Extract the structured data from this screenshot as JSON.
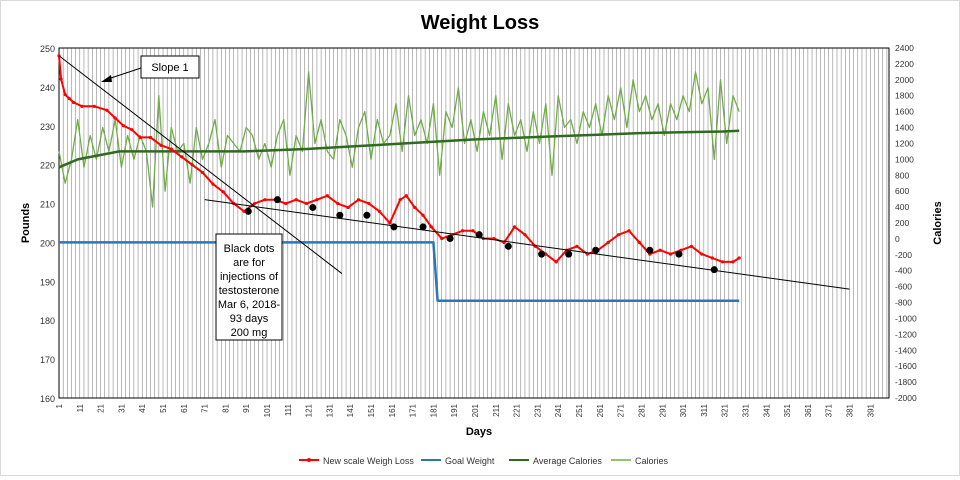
{
  "chart_data": {
    "type": "line",
    "title": "Weight Loss",
    "xlabel": "Days",
    "ylabel": "Pounds",
    "y2label": "Calories",
    "xlim": [
      1,
      400
    ],
    "ylim": [
      160,
      250
    ],
    "y2lim": [
      -2000,
      2400
    ],
    "x_ticks": [
      "1",
      "11",
      "21",
      "31",
      "41",
      "51",
      "61",
      "71",
      "81",
      "91",
      "101",
      "111",
      "121",
      "131",
      "141",
      "151",
      "161",
      "171",
      "181",
      "191",
      "201",
      "211",
      "221",
      "231",
      "241",
      "251",
      "261",
      "271",
      "281",
      "291",
      "301",
      "311",
      "321",
      "331",
      "341",
      "351",
      "361",
      "371",
      "381",
      "391"
    ],
    "y_ticks": [
      "160",
      "170",
      "180",
      "190",
      "200",
      "210",
      "220",
      "230",
      "240",
      "250"
    ],
    "y2_ticks": [
      "-2000",
      "-1800",
      "-1600",
      "-1400",
      "-1200",
      "-1000",
      "-800",
      "-600",
      "-400",
      "-200",
      "0",
      "200",
      "400",
      "600",
      "800",
      "1000",
      "1200",
      "1400",
      "1600",
      "1800",
      "2000",
      "2200",
      "2400"
    ],
    "grid": "vertical",
    "legend_position": "bottom",
    "colors": {
      "weight": "#ff0000",
      "goal": "#2e75b6",
      "avg_calories": "#2e6b1f",
      "calories": "#70ad47",
      "dots": "#000000",
      "trend": "#000000"
    },
    "series": [
      {
        "name": "New scale Weigh Loss",
        "axis": "left",
        "x": [
          1,
          2,
          4,
          6,
          8,
          12,
          18,
          24,
          28,
          32,
          36,
          40,
          45,
          50,
          55,
          60,
          65,
          70,
          75,
          80,
          85,
          90,
          95,
          100,
          105,
          110,
          115,
          120,
          125,
          130,
          135,
          140,
          145,
          150,
          155,
          160,
          165,
          168,
          172,
          176,
          180,
          185,
          190,
          195,
          200,
          205,
          210,
          215,
          220,
          225,
          230,
          235,
          240,
          245,
          250,
          255,
          260,
          265,
          270,
          275,
          280,
          285,
          290,
          295,
          300,
          305,
          310,
          315,
          320,
          325,
          328
        ],
        "values": [
          248,
          242,
          238,
          237,
          236,
          235,
          235,
          234,
          232,
          230,
          229,
          227,
          227,
          225,
          224,
          222,
          220,
          218,
          215,
          213,
          210,
          208,
          210,
          211,
          211,
          210,
          211,
          210,
          211,
          212,
          210,
          209,
          211,
          210,
          208,
          205,
          211,
          212,
          209,
          207,
          204,
          201,
          202,
          203,
          203,
          201,
          201,
          200,
          204,
          202,
          199,
          197,
          195,
          198,
          199,
          197,
          198,
          200,
          202,
          203,
          200,
          197,
          198,
          197,
          198,
          199,
          197,
          196,
          195,
          195,
          196
        ]
      },
      {
        "name": "Goal Weight",
        "axis": "left",
        "x": [
          1,
          181,
          183,
          328
        ],
        "values": [
          200,
          200,
          185,
          185
        ]
      },
      {
        "name": "Average Calories",
        "axis": "right",
        "x": [
          1,
          10,
          20,
          30,
          40,
          50,
          60,
          70,
          80,
          90,
          100,
          120,
          140,
          160,
          180,
          200,
          220,
          240,
          260,
          280,
          300,
          320,
          328
        ],
        "values": [
          900,
          1000,
          1050,
          1100,
          1100,
          1100,
          1100,
          1100,
          1100,
          1100,
          1110,
          1130,
          1160,
          1190,
          1220,
          1250,
          1270,
          1290,
          1310,
          1330,
          1340,
          1350,
          1360
        ]
      },
      {
        "name": "Calories",
        "axis": "right",
        "x": [
          1,
          4,
          7,
          10,
          13,
          16,
          19,
          22,
          25,
          28,
          31,
          34,
          37,
          40,
          43,
          46,
          49,
          52,
          55,
          58,
          61,
          64,
          67,
          70,
          73,
          76,
          79,
          82,
          85,
          88,
          91,
          94,
          97,
          100,
          103,
          106,
          109,
          112,
          115,
          118,
          121,
          124,
          127,
          130,
          133,
          136,
          139,
          142,
          145,
          148,
          151,
          154,
          157,
          160,
          163,
          166,
          169,
          172,
          175,
          178,
          181,
          184,
          187,
          190,
          193,
          196,
          199,
          202,
          205,
          208,
          211,
          214,
          217,
          220,
          223,
          226,
          229,
          232,
          235,
          238,
          241,
          244,
          247,
          250,
          253,
          256,
          259,
          262,
          265,
          268,
          271,
          274,
          277,
          280,
          283,
          286,
          289,
          292,
          295,
          298,
          301,
          304,
          307,
          310,
          313,
          316,
          319,
          322,
          325,
          328
        ],
        "values": [
          1100,
          700,
          1000,
          1500,
          900,
          1300,
          1000,
          1400,
          1100,
          1500,
          900,
          1300,
          1000,
          1300,
          1100,
          400,
          1800,
          600,
          1400,
          1100,
          1200,
          700,
          1400,
          1000,
          1200,
          1500,
          900,
          1300,
          1200,
          1100,
          1400,
          1300,
          1000,
          1200,
          900,
          1300,
          1500,
          800,
          1300,
          1100,
          2100,
          1200,
          1500,
          1100,
          1000,
          1500,
          1300,
          900,
          1400,
          1600,
          1000,
          1500,
          1200,
          1300,
          1700,
          1100,
          1800,
          1300,
          1500,
          1200,
          1700,
          800,
          1600,
          1400,
          1900,
          1200,
          1500,
          1100,
          1600,
          1300,
          1800,
          1000,
          1700,
          1300,
          1500,
          1100,
          1600,
          1200,
          1700,
          800,
          1800,
          1400,
          1500,
          1200,
          1600,
          1400,
          1700,
          1300,
          1800,
          1500,
          1900,
          1400,
          2000,
          1600,
          1800,
          1500,
          1700,
          1300,
          1700,
          1500,
          1800,
          1600,
          2100,
          1700,
          1900,
          1000,
          2000,
          1200,
          1800,
          1600
        ]
      }
    ],
    "injection_dots": {
      "x": [
        92,
        106,
        123,
        136,
        149,
        162,
        176,
        189,
        203,
        217,
        233,
        246,
        259,
        285,
        299,
        316
      ],
      "values": [
        208,
        211,
        209,
        207,
        207,
        204,
        204,
        201,
        202,
        199,
        197,
        197,
        198,
        198,
        197,
        193
      ]
    },
    "trend_lines": [
      {
        "x": [
          1,
          137
        ],
        "values": [
          248,
          192
        ]
      },
      {
        "x": [
          71,
          381
        ],
        "values": [
          211,
          188
        ]
      }
    ],
    "annotations": [
      {
        "id": "slope",
        "text": "Slope 1",
        "arrow_to_x": 21,
        "arrow_to_y": 242
      },
      {
        "id": "dots-note",
        "lines": [
          "Black dots",
          "are for",
          "injections of",
          "testosterone",
          "Mar 6, 2018-",
          "93 days",
          "200 mg"
        ]
      }
    ]
  }
}
